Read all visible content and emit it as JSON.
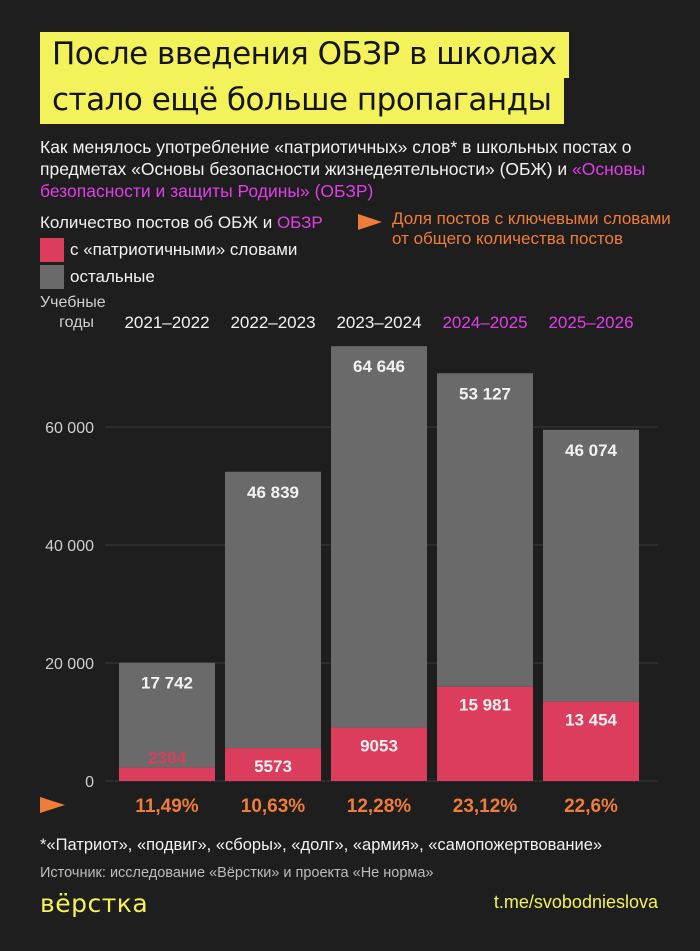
{
  "title": {
    "line1": "После введения ОБЗР в школах",
    "line2": "стало ещё больше пропаганды"
  },
  "subtitle": {
    "part1": "Как менялось употребление «патриотичных» слов* в школьных постах о предметах «Основы безопасности жизнедеятельности» (ОБЖ) и ",
    "part2_pink": "«Основы безопасности и защиты Родины» (ОБЗР)"
  },
  "legend": {
    "heading_prefix": "Количество постов об ОБЖ и ",
    "heading_pink": "ОБЗР",
    "patriotic": "с «патриотичными» словами",
    "other": "остальные",
    "share": "Доля постов с ключевыми словами от общего количества постов"
  },
  "years_label": "Учебные годы",
  "colors": {
    "background": "#1e1e1e",
    "patriotic": "#dd3d5c",
    "other": "#6a6a6a",
    "accent_pink": "#e23ee8",
    "accent_orange": "#f07c3a",
    "title_bg": "#f3f25a",
    "grid": "#3a3a3a"
  },
  "chart_data": {
    "type": "bar",
    "stacked": true,
    "categories": [
      "2021–2022",
      "2022–2023",
      "2023–2024",
      "2024–2025",
      "2025–2026"
    ],
    "category_highlight": [
      false,
      false,
      false,
      true,
      true
    ],
    "series": [
      {
        "name": "с «патриотичными» словами",
        "values": [
          2304,
          5573,
          9053,
          15981,
          13454
        ],
        "labels": [
          "2304",
          "5573",
          "9053",
          "15 981",
          "13 454"
        ]
      },
      {
        "name": "остальные",
        "values": [
          17742,
          46839,
          64646,
          53127,
          46074
        ],
        "labels": [
          "17 742",
          "46 839",
          "64 646",
          "53 127",
          "46 074"
        ]
      }
    ],
    "share_labels": [
      "11,49%",
      "10,63%",
      "12,28%",
      "23,12%",
      "22,6%"
    ],
    "yticks": [
      0,
      20000,
      40000,
      60000
    ],
    "ytick_labels": [
      "0",
      "20 000",
      "40 000",
      "60 000"
    ],
    "ylim": [
      0,
      75000
    ],
    "grid": true
  },
  "footnote": "*«Патриот», «подвиг», «сборы», «долг», «армия», «самопожертвование»",
  "source": "Источник: исследование «Вёрстки» и проекта «Не норма»",
  "brand": "вёрстка",
  "telegram": "t.me/svobodnieslova"
}
